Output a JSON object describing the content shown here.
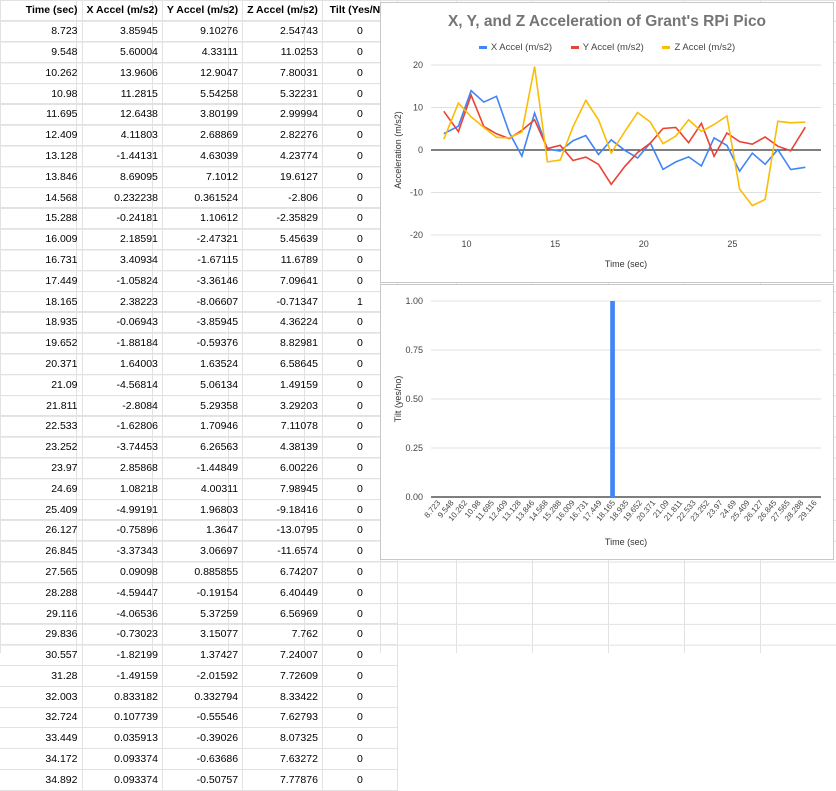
{
  "sheet": {
    "headers": [
      "Time (sec)",
      "X Accel (m/s2)",
      "Y Accel (m/s2)",
      "Z Accel (m/s2)",
      "Tilt (Yes/No)"
    ],
    "rows": [
      [
        "8.723",
        "3.85945",
        "9.10276",
        "2.54743",
        "0"
      ],
      [
        "9.548",
        "5.60004",
        "4.33111",
        "11.0253",
        "0"
      ],
      [
        "10.262",
        "13.9606",
        "12.9047",
        "7.80031",
        "0"
      ],
      [
        "10.98",
        "11.2815",
        "5.54258",
        "5.32231",
        "0"
      ],
      [
        "11.695",
        "12.6438",
        "3.80199",
        "2.99994",
        "0"
      ],
      [
        "12.409",
        "4.11803",
        "2.68869",
        "2.82276",
        "0"
      ],
      [
        "13.128",
        "-1.44131",
        "4.63039",
        "4.23774",
        "0"
      ],
      [
        "13.846",
        "8.69095",
        "7.1012",
        "19.6127",
        "0"
      ],
      [
        "14.568",
        "0.232238",
        "0.361524",
        "-2.806",
        "0"
      ],
      [
        "15.288",
        "-0.24181",
        "1.10612",
        "-2.35829",
        "0"
      ],
      [
        "16.009",
        "2.18591",
        "-2.47321",
        "5.45639",
        "0"
      ],
      [
        "16.731",
        "3.40934",
        "-1.67115",
        "11.6789",
        "0"
      ],
      [
        "17.449",
        "-1.05824",
        "-3.36146",
        "7.09641",
        "0"
      ],
      [
        "18.165",
        "2.38223",
        "-8.06607",
        "-0.71347",
        "1"
      ],
      [
        "18.935",
        "-0.06943",
        "-3.85945",
        "4.36224",
        "0"
      ],
      [
        "19.652",
        "-1.88184",
        "-0.59376",
        "8.82981",
        "0"
      ],
      [
        "20.371",
        "1.64003",
        "1.63524",
        "6.58645",
        "0"
      ],
      [
        "21.09",
        "-4.56814",
        "5.06134",
        "1.49159",
        "0"
      ],
      [
        "21.811",
        "-2.8084",
        "5.29358",
        "3.29203",
        "0"
      ],
      [
        "22.533",
        "-1.62806",
        "1.70946",
        "7.11078",
        "0"
      ],
      [
        "23.252",
        "-3.74453",
        "6.26563",
        "4.38139",
        "0"
      ],
      [
        "23.97",
        "2.85868",
        "-1.44849",
        "6.00226",
        "0"
      ],
      [
        "24.69",
        "1.08218",
        "4.00311",
        "7.98945",
        "0"
      ],
      [
        "25.409",
        "-4.99191",
        "1.96803",
        "-9.18416",
        "0"
      ],
      [
        "26.127",
        "-0.75896",
        "1.3647",
        "-13.0795",
        "0"
      ],
      [
        "26.845",
        "-3.37343",
        "3.06697",
        "-11.6574",
        "0"
      ],
      [
        "27.565",
        "0.09098",
        "0.885855",
        "6.74207",
        "0"
      ],
      [
        "28.288",
        "-4.59447",
        "-0.19154",
        "6.40449",
        "0"
      ],
      [
        "29.116",
        "-4.06536",
        "5.37259",
        "6.56969",
        "0"
      ],
      [
        "29.836",
        "-0.73023",
        "3.15077",
        "7.762",
        "0"
      ],
      [
        "30.557",
        "-1.82199",
        "1.37427",
        "7.24007",
        "0"
      ],
      [
        "31.28",
        "-1.49159",
        "-2.01592",
        "7.72609",
        "0"
      ],
      [
        "32.003",
        "0.833182",
        "0.332794",
        "8.33422",
        "0"
      ],
      [
        "32.724",
        "0.107739",
        "-0.55546",
        "7.62793",
        "0"
      ],
      [
        "33.449",
        "0.035913",
        "-0.39026",
        "8.07325",
        "0"
      ],
      [
        "34.172",
        "0.093374",
        "-0.63686",
        "7.63272",
        "0"
      ],
      [
        "34.892",
        "0.093374",
        "-0.50757",
        "7.77876",
        "0"
      ]
    ]
  },
  "chart_data": [
    {
      "type": "line",
      "title": "X, Y, and Z Acceleration of Grant's RPi Pico",
      "xlabel": "Time (sec)",
      "ylabel": "Acceleration (m/s2)",
      "xlim": [
        8,
        30
      ],
      "ylim": [
        -20,
        20
      ],
      "xticks": [
        10,
        15,
        20,
        25
      ],
      "yticks": [
        -20,
        -10,
        0,
        10,
        20
      ],
      "legend": "top",
      "x": [
        8.723,
        9.548,
        10.262,
        10.98,
        11.695,
        12.409,
        13.128,
        13.846,
        14.568,
        15.288,
        16.009,
        16.731,
        17.449,
        18.165,
        18.935,
        19.652,
        20.371,
        21.09,
        21.811,
        22.533,
        23.252,
        23.97,
        24.69,
        25.409,
        26.127,
        26.845,
        27.565,
        28.288,
        29.116
      ],
      "series": [
        {
          "name": "X Accel (m/s2)",
          "color": "#4285f4",
          "values": [
            3.85945,
            5.60004,
            13.9606,
            11.2815,
            12.6438,
            4.11803,
            -1.44131,
            8.69095,
            0.232238,
            -0.24181,
            2.18591,
            3.40934,
            -1.05824,
            2.38223,
            -0.06943,
            -1.88184,
            1.64003,
            -4.56814,
            -2.8084,
            -1.62806,
            -3.74453,
            2.85868,
            1.08218,
            -4.99191,
            -0.75896,
            -3.37343,
            0.09098,
            -4.59447,
            -4.06536
          ]
        },
        {
          "name": "Y Accel (m/s2)",
          "color": "#ea4335",
          "values": [
            9.10276,
            4.33111,
            12.9047,
            5.54258,
            3.80199,
            2.68869,
            4.63039,
            7.1012,
            0.361524,
            1.10612,
            -2.47321,
            -1.67115,
            -3.36146,
            -8.06607,
            -3.85945,
            -0.59376,
            1.63524,
            5.06134,
            5.29358,
            1.70946,
            6.26563,
            -1.44849,
            4.00311,
            1.96803,
            1.3647,
            3.06697,
            0.885855,
            -0.19154,
            5.37259
          ]
        },
        {
          "name": "Z Accel (m/s2)",
          "color": "#fbbc04",
          "values": [
            2.54743,
            11.0253,
            7.80031,
            5.32231,
            2.99994,
            2.82276,
            4.23774,
            19.6127,
            -2.806,
            -2.35829,
            5.45639,
            11.6789,
            7.09641,
            -0.71347,
            4.36224,
            8.82981,
            6.58645,
            1.49159,
            3.29203,
            7.11078,
            4.38139,
            6.00226,
            7.98945,
            -9.18416,
            -13.0795,
            -11.6574,
            6.74207,
            6.40449,
            6.56969
          ]
        }
      ]
    },
    {
      "type": "bar",
      "xlabel": "Time (sec)",
      "ylabel": "Tilt (yes/no)",
      "ylim": [
        0,
        1
      ],
      "yticks": [
        "0.00",
        "0.25",
        "0.50",
        "0.75",
        "1.00"
      ],
      "categories": [
        "8.723",
        "9.548",
        "10.262",
        "10.98",
        "11.695",
        "12.409",
        "13.128",
        "13.846",
        "14.568",
        "15.288",
        "16.009",
        "16.731",
        "17.449",
        "18.165",
        "18.935",
        "19.652",
        "20.371",
        "21.09",
        "21.811",
        "22.533",
        "23.252",
        "23.97",
        "24.69",
        "25.409",
        "26.127",
        "26.845",
        "27.565",
        "28.288",
        "29.116"
      ],
      "values": [
        0,
        0,
        0,
        0,
        0,
        0,
        0,
        0,
        0,
        0,
        0,
        0,
        0,
        1,
        0,
        0,
        0,
        0,
        0,
        0,
        0,
        0,
        0,
        0,
        0,
        0,
        0,
        0,
        0
      ],
      "color": "#4285f4"
    }
  ]
}
